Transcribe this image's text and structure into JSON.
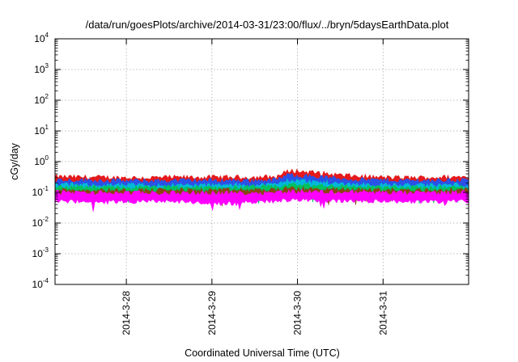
{
  "chart_data": {
    "type": "area",
    "title": "/data/run/goesPlots/archive/2014-03-31/23:00/flux/../bryn/5daysEarthData.plot",
    "xlabel": "Coordinated Universal Time (UTC)",
    "ylabel": "cGy/day",
    "yscale": "log",
    "ylim": [
      0.0001,
      10000
    ],
    "xlim": [
      "2014-03-27T04:00",
      "2014-04-01T00:00"
    ],
    "grid": true,
    "legend": "none",
    "y_ticks": [
      {
        "base": "10",
        "exp": "-4",
        "value": 0.0001
      },
      {
        "base": "10",
        "exp": "-3",
        "value": 0.001
      },
      {
        "base": "10",
        "exp": "-2",
        "value": 0.01
      },
      {
        "base": "10",
        "exp": "-1",
        "value": 0.1
      },
      {
        "base": "10",
        "exp": "0",
        "value": 1
      },
      {
        "base": "10",
        "exp": "1",
        "value": 10
      },
      {
        "base": "10",
        "exp": "2",
        "value": 100
      },
      {
        "base": "10",
        "exp": "3",
        "value": 1000
      },
      {
        "base": "10",
        "exp": "4",
        "value": 10000
      }
    ],
    "x_ticks": [
      {
        "label": "2014-3-28",
        "value": "2014-03-28T00:00"
      },
      {
        "label": "2014-3-29",
        "value": "2014-03-29T00:00"
      },
      {
        "label": "2014-3-30",
        "value": "2014-03-30T00:00"
      },
      {
        "label": "2014-3-31",
        "value": "2014-03-31T00:00"
      }
    ],
    "x": [
      "2014-03-27T04:00",
      "2014-03-27T16:00",
      "2014-03-28T04:00",
      "2014-03-28T16:00",
      "2014-03-29T04:00",
      "2014-03-29T12:00",
      "2014-03-29T18:00",
      "2014-03-29T22:00",
      "2014-03-30T04:00",
      "2014-03-30T12:00",
      "2014-03-30T20:00",
      "2014-03-31T04:00",
      "2014-03-31T16:00",
      "2014-04-01T00:00"
    ],
    "series": [
      {
        "color": "#e41a1c",
        "high": [
          0.3,
          0.29,
          0.28,
          0.29,
          0.29,
          0.29,
          0.3,
          0.48,
          0.42,
          0.34,
          0.3,
          0.28,
          0.29,
          0.3
        ],
        "low": [
          0.2,
          0.19,
          0.19,
          0.19,
          0.19,
          0.2,
          0.21,
          0.3,
          0.26,
          0.22,
          0.2,
          0.19,
          0.19,
          0.2
        ]
      },
      {
        "color": "#2a52e6",
        "high": [
          0.24,
          0.23,
          0.22,
          0.23,
          0.23,
          0.23,
          0.24,
          0.35,
          0.31,
          0.26,
          0.24,
          0.23,
          0.23,
          0.24
        ],
        "low": [
          0.14,
          0.13,
          0.13,
          0.13,
          0.13,
          0.14,
          0.15,
          0.22,
          0.19,
          0.16,
          0.14,
          0.13,
          0.13,
          0.14
        ]
      },
      {
        "color": "#00b8d8",
        "high": [
          0.17,
          0.16,
          0.16,
          0.16,
          0.16,
          0.16,
          0.17,
          0.24,
          0.21,
          0.18,
          0.17,
          0.16,
          0.16,
          0.17
        ],
        "low": [
          0.12,
          0.115,
          0.115,
          0.115,
          0.115,
          0.12,
          0.125,
          0.17,
          0.15,
          0.13,
          0.12,
          0.115,
          0.115,
          0.12
        ]
      },
      {
        "color": "#00c060",
        "high": [
          0.14,
          0.135,
          0.135,
          0.135,
          0.135,
          0.14,
          0.14,
          0.17,
          0.16,
          0.15,
          0.14,
          0.135,
          0.135,
          0.14
        ],
        "low": [
          0.11,
          0.105,
          0.105,
          0.105,
          0.105,
          0.11,
          0.11,
          0.13,
          0.12,
          0.115,
          0.11,
          0.105,
          0.105,
          0.11
        ]
      },
      {
        "color": "#8b4513",
        "high": [
          0.115,
          0.11,
          0.11,
          0.11,
          0.11,
          0.11,
          0.115,
          0.125,
          0.12,
          0.115,
          0.115,
          0.11,
          0.11,
          0.115
        ],
        "low": [
          0.095,
          0.092,
          0.092,
          0.092,
          0.092,
          0.094,
          0.096,
          0.105,
          0.1,
          0.097,
          0.095,
          0.092,
          0.092,
          0.095
        ]
      },
      {
        "color": "#ff00ff",
        "high": [
          0.095,
          0.09,
          0.09,
          0.09,
          0.09,
          0.09,
          0.095,
          0.1,
          0.098,
          0.095,
          0.095,
          0.09,
          0.09,
          0.095
        ],
        "low": [
          0.06,
          0.058,
          0.058,
          0.058,
          0.05,
          0.058,
          0.06,
          0.066,
          0.064,
          0.062,
          0.06,
          0.058,
          0.058,
          0.06
        ]
      }
    ]
  }
}
